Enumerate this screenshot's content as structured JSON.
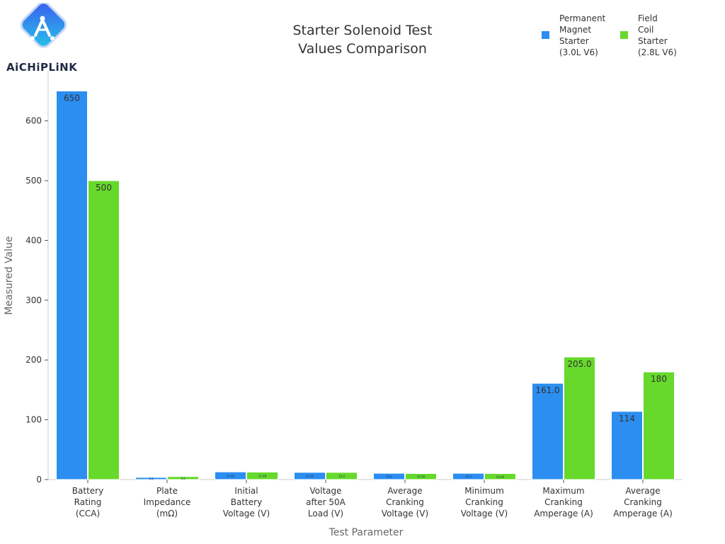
{
  "brand": {
    "name": "AiCHiPLiNK",
    "icon": "chip-link-logo-icon"
  },
  "chart_data": {
    "type": "bar",
    "title": [
      "Starter Solenoid Test",
      "Values Comparison"
    ],
    "xlabel": "Test Parameter",
    "ylabel": "Measured Value",
    "ylim": [
      0,
      660
    ],
    "yticks": [
      0,
      100,
      200,
      300,
      400,
      500,
      600
    ],
    "grid": false,
    "legend_position": "top-right",
    "categories": [
      [
        "Battery",
        "Rating",
        "(CCA)"
      ],
      [
        "Plate",
        "Impedance",
        "(mΩ)"
      ],
      [
        "Initial",
        "Battery",
        "Voltage (V)"
      ],
      [
        "Voltage",
        "after 50A",
        "Load (V)"
      ],
      [
        "Average",
        "Cranking",
        "Voltage (V)"
      ],
      [
        "Minimum",
        "Cranking",
        "Voltage (V)"
      ],
      [
        "Maximum",
        "Cranking",
        "Amperage (A)"
      ],
      [
        "Average",
        "Cranking",
        "Amperage (A)"
      ]
    ],
    "series": [
      {
        "name": [
          "Permanent",
          "Magnet",
          "Starter",
          "(3.0L V6)"
        ],
        "color": "#2b8ef0",
        "values": [
          650,
          3.6,
          12.81,
          12.05,
          10.5,
          10.5,
          161.0,
          114
        ],
        "labels": [
          "650",
          "3.6",
          "12.81",
          "12.05",
          "10.5",
          "10.5",
          "161.0",
          "114"
        ]
      },
      {
        "name": [
          "Field",
          "Coil",
          "Starter",
          "(2.8L V6)"
        ],
        "color": "#66d92b",
        "values": [
          500,
          5.0,
          12.48,
          12.0,
          10.09,
          10.04,
          205.0,
          180
        ],
        "labels": [
          "500",
          "5.0",
          "12.48",
          "12.0",
          "10.09",
          "10.04",
          "205.0",
          "180"
        ]
      }
    ]
  }
}
